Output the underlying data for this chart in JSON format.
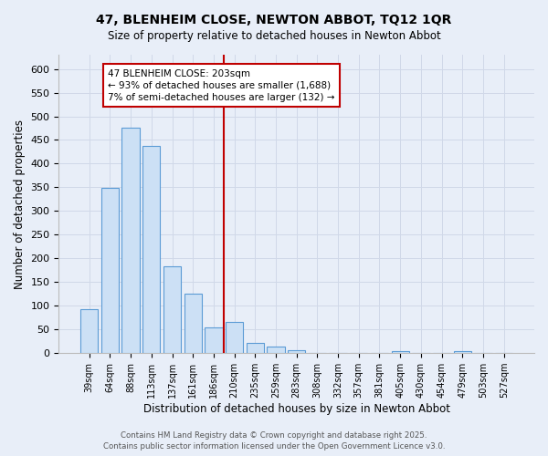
{
  "title_line1": "47, BLENHEIM CLOSE, NEWTON ABBOT, TQ12 1QR",
  "title_line2": "Size of property relative to detached houses in Newton Abbot",
  "xlabel": "Distribution of detached houses by size in Newton Abbot",
  "ylabel": "Number of detached properties",
  "footer_line1": "Contains HM Land Registry data © Crown copyright and database right 2025.",
  "footer_line2": "Contains public sector information licensed under the Open Government Licence v3.0.",
  "bins": [
    "39sqm",
    "64sqm",
    "88sqm",
    "113sqm",
    "137sqm",
    "161sqm",
    "186sqm",
    "210sqm",
    "235sqm",
    "259sqm",
    "283sqm",
    "308sqm",
    "332sqm",
    "357sqm",
    "381sqm",
    "405sqm",
    "430sqm",
    "454sqm",
    "479sqm",
    "503sqm",
    "527sqm"
  ],
  "bar_values": [
    92,
    349,
    476,
    438,
    184,
    126,
    55,
    65,
    22,
    13,
    7,
    0,
    0,
    0,
    0,
    5,
    0,
    0,
    4,
    0,
    0
  ],
  "bar_color": "#cce0f5",
  "bar_edge_color": "#5b9bd5",
  "grid_color": "#d0d8e8",
  "background_color": "#e8eef8",
  "vline_pos": 6.5,
  "vline_color": "#c00000",
  "annotation_title": "47 BLENHEIM CLOSE: 203sqm",
  "annotation_line1": "← 93% of detached houses are smaller (1,688)",
  "annotation_line2": "7% of semi-detached houses are larger (132) →",
  "ylim": [
    0,
    630
  ],
  "yticks": [
    0,
    50,
    100,
    150,
    200,
    250,
    300,
    350,
    400,
    450,
    500,
    550,
    600
  ]
}
